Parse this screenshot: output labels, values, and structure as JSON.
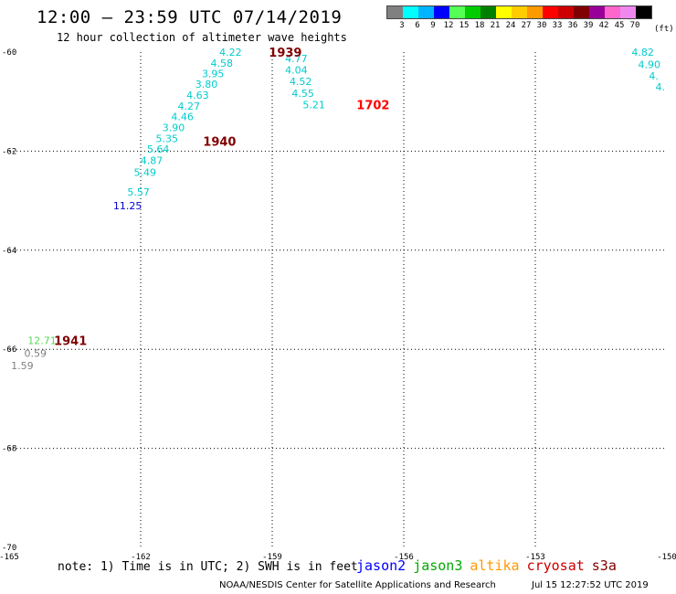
{
  "header": {
    "title": "12:00 – 23:59 UTC 07/14/2019",
    "subtitle": "12 hour collection of altimeter wave heights"
  },
  "legend": {
    "colors": [
      "#808080",
      "#00ffff",
      "#00b4ff",
      "#0000ff",
      "#55ff55",
      "#00cc00",
      "#008000",
      "#ffff00",
      "#ffcc00",
      "#ff9900",
      "#ff0000",
      "#cc0000",
      "#800000",
      "#990099",
      "#ff66cc",
      "#ee88ee",
      "#000000"
    ],
    "labels": [
      "3",
      "6",
      "9",
      "12",
      "15",
      "18",
      "21",
      "24",
      "27",
      "30",
      "33",
      "36",
      "39",
      "42",
      "45",
      "70"
    ],
    "unit": "(ft)"
  },
  "footer": {
    "note": "note: 1) Time is in UTC; 2) SWH is in feet",
    "satellites": [
      {
        "name": "jason2",
        "color": "#0000ff"
      },
      {
        "name": "jason3",
        "color": "#00aa00"
      },
      {
        "name": "altika",
        "color": "#ff9900"
      },
      {
        "name": "cryosat",
        "color": "#cc0000"
      },
      {
        "name": "s3a",
        "color": "#800000"
      }
    ],
    "credit": "NOAA/NESDIS Center for Satellite Applications and Research",
    "timestamp": "Jul 15 12:27:52 UTC 2019"
  },
  "chart_data": {
    "type": "scatter",
    "xlim": [
      -165,
      -150
    ],
    "ylim": [
      -70,
      -60
    ],
    "x_ticks": [
      {
        "value": -165,
        "label": "-165"
      },
      {
        "value": -162,
        "label": "-162"
      },
      {
        "value": -159,
        "label": "-159"
      },
      {
        "value": -156,
        "label": "-156"
      },
      {
        "value": -153,
        "label": "-153"
      },
      {
        "value": -150,
        "label": "-150"
      }
    ],
    "y_ticks": [
      {
        "value": -60,
        "label": "-60"
      },
      {
        "value": -62,
        "label": "-62"
      },
      {
        "value": -64,
        "label": "-64"
      },
      {
        "value": -66,
        "label": "-66"
      },
      {
        "value": -68,
        "label": "-68"
      },
      {
        "value": -70,
        "label": "-70"
      }
    ],
    "grid": "dotted",
    "points": [
      {
        "x": -159.95,
        "y": -60.0,
        "label": "4.22",
        "color": "#00cccc"
      },
      {
        "x": -160.15,
        "y": -60.22,
        "label": "4.58",
        "color": "#00cccc"
      },
      {
        "x": -160.35,
        "y": -60.43,
        "label": "3.95",
        "color": "#00cccc"
      },
      {
        "x": -160.5,
        "y": -60.65,
        "label": "3.80",
        "color": "#00cccc"
      },
      {
        "x": -160.7,
        "y": -60.87,
        "label": "4.63",
        "color": "#00cccc"
      },
      {
        "x": -160.9,
        "y": -61.09,
        "label": "4.27",
        "color": "#00cccc"
      },
      {
        "x": -161.05,
        "y": -61.3,
        "label": "4.46",
        "color": "#00cccc"
      },
      {
        "x": -161.25,
        "y": -61.52,
        "label": "3.90",
        "color": "#00cccc"
      },
      {
        "x": -161.4,
        "y": -61.74,
        "label": "5.35",
        "color": "#00cccc"
      },
      {
        "x": -161.6,
        "y": -61.96,
        "label": "5.64",
        "color": "#00cccc"
      },
      {
        "x": -161.75,
        "y": -62.19,
        "label": "4.87",
        "color": "#00cccc"
      },
      {
        "x": -161.9,
        "y": -62.43,
        "label": "5.49",
        "color": "#00cccc"
      },
      {
        "x": -162.05,
        "y": -62.82,
        "label": "5.57",
        "color": "#00cccc"
      },
      {
        "x": -162.3,
        "y": -63.1,
        "label": "11.25",
        "color": "#0000cc"
      },
      {
        "x": -158.45,
        "y": -60.13,
        "label": "4.77",
        "color": "#00cccc"
      },
      {
        "x": -158.45,
        "y": -60.36,
        "label": "4.04",
        "color": "#00cccc"
      },
      {
        "x": -158.35,
        "y": -60.59,
        "label": "4.52",
        "color": "#00cccc"
      },
      {
        "x": -158.3,
        "y": -60.83,
        "label": "4.55",
        "color": "#00cccc"
      },
      {
        "x": -158.05,
        "y": -61.06,
        "label": "5.21",
        "color": "#00cccc"
      },
      {
        "x": -164.25,
        "y": -65.82,
        "label": "12.71",
        "color": "#55dd55"
      },
      {
        "x": -164.4,
        "y": -66.08,
        "label": "0.59",
        "color": "#808080"
      },
      {
        "x": -164.7,
        "y": -66.33,
        "label": "1.59",
        "color": "#808080"
      },
      {
        "x": -150.55,
        "y": -60.0,
        "label": "4.82",
        "color": "#00cccc"
      },
      {
        "x": -150.4,
        "y": -60.25,
        "label": "4.90",
        "color": "#00cccc"
      },
      {
        "x": -150.3,
        "y": -60.48,
        "label": "4.",
        "color": "#00cccc"
      },
      {
        "x": -150.15,
        "y": -60.7,
        "label": "4.",
        "color": "#00cccc"
      }
    ],
    "pass_times": [
      {
        "x": -158.7,
        "y": -60.0,
        "label": "1939",
        "color": "#800000"
      },
      {
        "x": -156.7,
        "y": -61.06,
        "label": "1702",
        "color": "#ff0000"
      },
      {
        "x": -160.2,
        "y": -61.8,
        "label": "1940",
        "color": "#800000"
      },
      {
        "x": -163.6,
        "y": -65.82,
        "label": "1941",
        "color": "#800000"
      }
    ]
  }
}
